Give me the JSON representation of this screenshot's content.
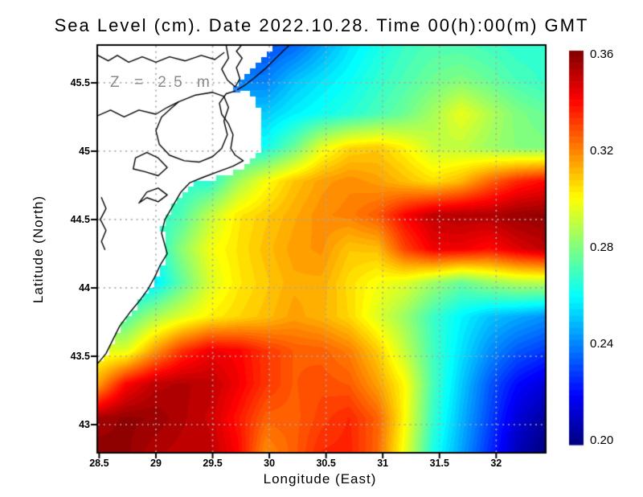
{
  "chart_data": {
    "type": "heatmap",
    "title": "Sea Level (cm). Date 2022.10.28. Time 00(h):00(m) GMT",
    "xlabel": "Longitude (East)",
    "ylabel": "Latitude (North)",
    "annotation": "Z = 2.5 m",
    "x_range": [
      28.49,
      32.43
    ],
    "y_range": [
      42.8,
      45.77
    ],
    "x_ticks": [
      28.5,
      29,
      29.5,
      30,
      30.5,
      31,
      31.5,
      32
    ],
    "x_tick_labels": [
      "28.5",
      "29",
      "29.5",
      "30",
      "30.5",
      "31",
      "31.5",
      "32"
    ],
    "y_ticks": [
      43,
      43.5,
      44,
      44.5,
      45,
      45.5
    ],
    "y_tick_labels": [
      "43",
      "43.5",
      "44",
      "44.5",
      "45",
      "45.5"
    ],
    "grid": true,
    "colormap": "jet",
    "level_step": 0.0025,
    "colorbar": {
      "min": 0.2,
      "max": 0.36,
      "ticks": [
        0.36,
        0.32,
        0.28,
        0.24,
        0.2
      ],
      "tick_labels": [
        "0.36",
        "0.32",
        "0.28",
        "0.24",
        "0.20"
      ]
    },
    "values": [
      [
        null,
        null,
        null,
        null,
        null,
        null,
        0.232,
        0.236,
        0.246,
        0.256,
        0.263,
        0.269,
        0.272,
        0.272,
        0.27,
        0.267,
        0.267
      ],
      [
        null,
        null,
        null,
        null,
        null,
        null,
        0.24,
        0.25,
        0.256,
        0.261,
        0.267,
        0.272,
        0.277,
        0.28,
        0.276,
        0.271,
        0.268
      ],
      [
        null,
        null,
        null,
        null,
        null,
        null,
        0.252,
        0.258,
        0.262,
        0.266,
        0.271,
        0.277,
        0.286,
        0.297,
        0.288,
        0.28,
        0.276
      ],
      [
        null,
        null,
        null,
        null,
        null,
        null,
        0.262,
        0.276,
        0.296,
        0.306,
        0.308,
        0.301,
        0.291,
        0.29,
        0.285,
        0.281,
        0.28
      ],
      [
        null,
        null,
        null,
        null,
        0.266,
        0.285,
        0.299,
        0.309,
        0.315,
        0.318,
        0.315,
        0.31,
        0.305,
        0.311,
        0.324,
        0.334,
        0.339
      ],
      [
        null,
        null,
        0.266,
        0.272,
        0.29,
        0.303,
        0.308,
        0.313,
        0.318,
        0.32,
        0.326,
        0.34,
        0.35,
        0.352,
        0.352,
        0.356,
        0.357
      ],
      [
        null,
        null,
        0.262,
        0.282,
        0.298,
        0.304,
        0.31,
        0.315,
        0.317,
        0.309,
        0.31,
        0.33,
        0.342,
        0.342,
        0.338,
        0.345,
        0.35
      ],
      [
        null,
        null,
        0.256,
        0.275,
        0.294,
        0.303,
        0.308,
        0.313,
        0.313,
        0.305,
        0.299,
        0.295,
        0.285,
        0.276,
        0.283,
        0.288,
        0.289
      ],
      [
        null,
        0.272,
        0.286,
        0.295,
        0.302,
        0.306,
        0.31,
        0.315,
        0.312,
        0.306,
        0.295,
        0.284,
        0.269,
        0.259,
        0.251,
        0.247,
        0.243
      ],
      [
        null,
        0.295,
        0.315,
        0.332,
        0.342,
        0.34,
        0.332,
        0.326,
        0.325,
        0.32,
        0.308,
        0.29,
        0.27,
        0.256,
        0.243,
        0.234,
        0.229
      ],
      [
        0.315,
        0.34,
        0.35,
        0.352,
        0.35,
        0.342,
        0.332,
        0.326,
        0.328,
        0.326,
        0.315,
        0.3,
        0.271,
        0.252,
        0.234,
        0.221,
        0.214
      ],
      [
        0.354,
        0.357,
        0.356,
        0.352,
        0.348,
        0.337,
        0.325,
        0.325,
        0.33,
        0.334,
        0.325,
        0.3,
        0.268,
        0.249,
        0.231,
        0.214,
        0.205
      ],
      [
        0.358,
        0.357,
        0.352,
        0.35,
        0.35,
        0.34,
        0.318,
        0.325,
        0.334,
        0.335,
        0.324,
        0.297,
        0.264,
        0.246,
        0.227,
        0.209,
        0.2
      ]
    ],
    "land_boundary": [
      [
        30.05,
        45.77
      ],
      [
        29.95,
        45.68
      ],
      [
        29.85,
        45.6
      ],
      [
        29.77,
        45.52
      ],
      [
        29.72,
        45.46
      ],
      [
        29.84,
        45.42
      ],
      [
        29.9,
        45.33
      ],
      [
        29.93,
        45.2
      ],
      [
        29.93,
        45.05
      ],
      [
        29.9,
        44.97
      ],
      [
        29.84,
        44.9
      ],
      [
        29.7,
        44.85
      ],
      [
        29.55,
        44.8
      ],
      [
        29.4,
        44.78
      ],
      [
        29.3,
        44.74
      ],
      [
        29.22,
        44.68
      ],
      [
        29.16,
        44.6
      ],
      [
        29.1,
        44.52
      ],
      [
        29.06,
        44.42
      ],
      [
        29.08,
        44.32
      ],
      [
        29.1,
        44.25
      ],
      [
        29.05,
        44.15
      ],
      [
        29.0,
        44.05
      ],
      [
        28.95,
        43.97
      ],
      [
        28.87,
        43.9
      ],
      [
        28.77,
        43.8
      ],
      [
        28.68,
        43.7
      ],
      [
        28.62,
        43.6
      ],
      [
        28.56,
        43.5
      ],
      [
        28.49,
        43.42
      ]
    ],
    "coastlines": [
      [
        [
          30.17,
          45.77
        ],
        [
          30.07,
          45.69
        ],
        [
          29.96,
          45.6
        ],
        [
          29.86,
          45.53
        ],
        [
          29.78,
          45.48
        ],
        [
          29.72,
          45.45
        ]
      ],
      [
        [
          29.62,
          45.77
        ],
        [
          29.64,
          45.68
        ],
        [
          29.58,
          45.6
        ],
        [
          29.63,
          45.52
        ],
        [
          29.7,
          45.47
        ],
        [
          29.74,
          45.53
        ],
        [
          29.71,
          45.61
        ],
        [
          29.76,
          45.68
        ],
        [
          29.71,
          45.73
        ],
        [
          29.75,
          45.77
        ]
      ],
      [
        [
          29.7,
          45.44
        ],
        [
          29.62,
          45.42
        ],
        [
          29.56,
          45.35
        ],
        [
          29.58,
          45.27
        ],
        [
          29.64,
          45.2
        ],
        [
          29.68,
          45.12
        ],
        [
          29.66,
          45.02
        ],
        [
          29.7,
          44.97
        ],
        [
          29.77,
          44.93
        ],
        [
          29.68,
          44.89
        ],
        [
          29.55,
          44.85
        ],
        [
          29.42,
          44.81
        ],
        [
          29.3,
          44.77
        ],
        [
          29.22,
          44.7
        ],
        [
          29.15,
          44.6
        ],
        [
          29.08,
          44.5
        ],
        [
          29.05,
          44.4
        ],
        [
          29.08,
          44.31
        ],
        [
          29.1,
          44.25
        ],
        [
          29.04,
          44.17
        ],
        [
          28.99,
          44.08
        ],
        [
          28.93,
          43.99
        ],
        [
          28.86,
          43.91
        ],
        [
          28.77,
          43.82
        ],
        [
          28.68,
          43.72
        ],
        [
          28.62,
          43.62
        ],
        [
          28.56,
          43.52
        ],
        [
          28.48,
          43.44
        ]
      ],
      [
        [
          29.2,
          45.36
        ],
        [
          29.35,
          45.41
        ],
        [
          29.5,
          45.43
        ],
        [
          29.6,
          45.4
        ],
        [
          29.64,
          45.32
        ],
        [
          29.6,
          45.22
        ],
        [
          29.63,
          45.12
        ],
        [
          29.58,
          45.02
        ],
        [
          29.5,
          44.96
        ],
        [
          29.38,
          44.92
        ],
        [
          29.25,
          44.93
        ],
        [
          29.12,
          44.97
        ],
        [
          29.03,
          45.05
        ],
        [
          29.0,
          45.15
        ],
        [
          29.05,
          45.25
        ],
        [
          29.13,
          45.31
        ],
        [
          29.2,
          45.36
        ]
      ],
      [
        [
          28.82,
          44.95
        ],
        [
          28.92,
          44.99
        ],
        [
          29.02,
          44.95
        ],
        [
          29.1,
          44.88
        ],
        [
          29.02,
          44.82
        ],
        [
          28.9,
          44.85
        ],
        [
          28.8,
          44.87
        ],
        [
          28.82,
          44.95
        ]
      ],
      [
        [
          28.92,
          44.7
        ],
        [
          29.02,
          44.73
        ],
        [
          29.1,
          44.68
        ],
        [
          29.02,
          44.63
        ],
        [
          28.92,
          44.66
        ],
        [
          28.85,
          44.62
        ],
        [
          28.92,
          44.7
        ]
      ],
      [
        [
          28.49,
          45.7
        ],
        [
          28.58,
          45.66
        ],
        [
          28.66,
          45.7
        ],
        [
          28.76,
          45.65
        ],
        [
          28.88,
          45.69
        ],
        [
          29.0,
          45.65
        ],
        [
          29.12,
          45.69
        ],
        [
          29.26,
          45.66
        ],
        [
          29.4,
          45.7
        ],
        [
          29.52,
          45.67
        ],
        [
          29.6,
          45.72
        ]
      ],
      [
        [
          28.49,
          45.26
        ],
        [
          28.6,
          45.3
        ],
        [
          28.72,
          45.25
        ],
        [
          28.85,
          45.3
        ],
        [
          29.0,
          45.27
        ],
        [
          29.1,
          45.32
        ],
        [
          29.2,
          45.36
        ]
      ],
      [
        [
          28.52,
          44.66
        ],
        [
          28.56,
          44.58
        ],
        [
          28.51,
          44.5
        ],
        [
          28.56,
          44.42
        ],
        [
          28.52,
          44.34
        ],
        [
          28.55,
          44.28
        ]
      ]
    ],
    "sea_cell": {
      "lon": 29.68,
      "lat": 45.475,
      "color": "#2e8bff"
    },
    "colors": {
      "background": "#ffffff",
      "border": "#000000",
      "grid_dots": "#a8a8a8",
      "coast": "#000000",
      "land": "#ffffff",
      "annotation": "#8a8a8a",
      "text": "#000000"
    }
  }
}
